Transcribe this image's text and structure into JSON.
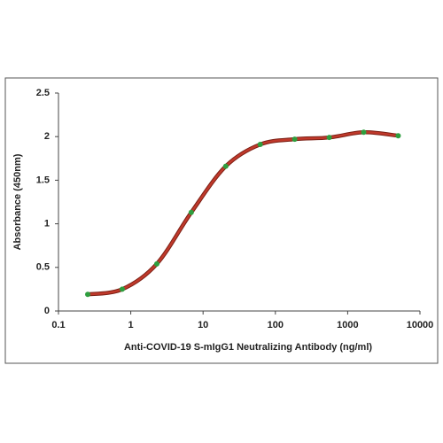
{
  "chart_data": {
    "type": "line",
    "xlabel": "Anti-COVID-19 S-mIgG1 Neutralizing Antibody (ng/ml)",
    "ylabel": "Absorbance (450nm)",
    "x": [
      0.254,
      0.762,
      2.29,
      6.86,
      20.6,
      61.7,
      185,
      556,
      1667,
      5000
    ],
    "series": [
      {
        "color": "#c0392b",
        "marker_color": "#2e9e3e",
        "values": [
          0.19,
          0.25,
          0.54,
          1.13,
          1.66,
          1.91,
          1.97,
          1.99,
          2.05,
          2.01
        ]
      }
    ],
    "xscale": "log",
    "xlim": [
      0.1,
      10000
    ],
    "xticks": [
      0.1,
      1,
      10,
      100,
      1000,
      10000
    ],
    "ylim": [
      0,
      2.5
    ],
    "yticks": [
      0,
      0.5,
      1,
      1.5,
      2,
      2.5
    ],
    "grid": false
  }
}
